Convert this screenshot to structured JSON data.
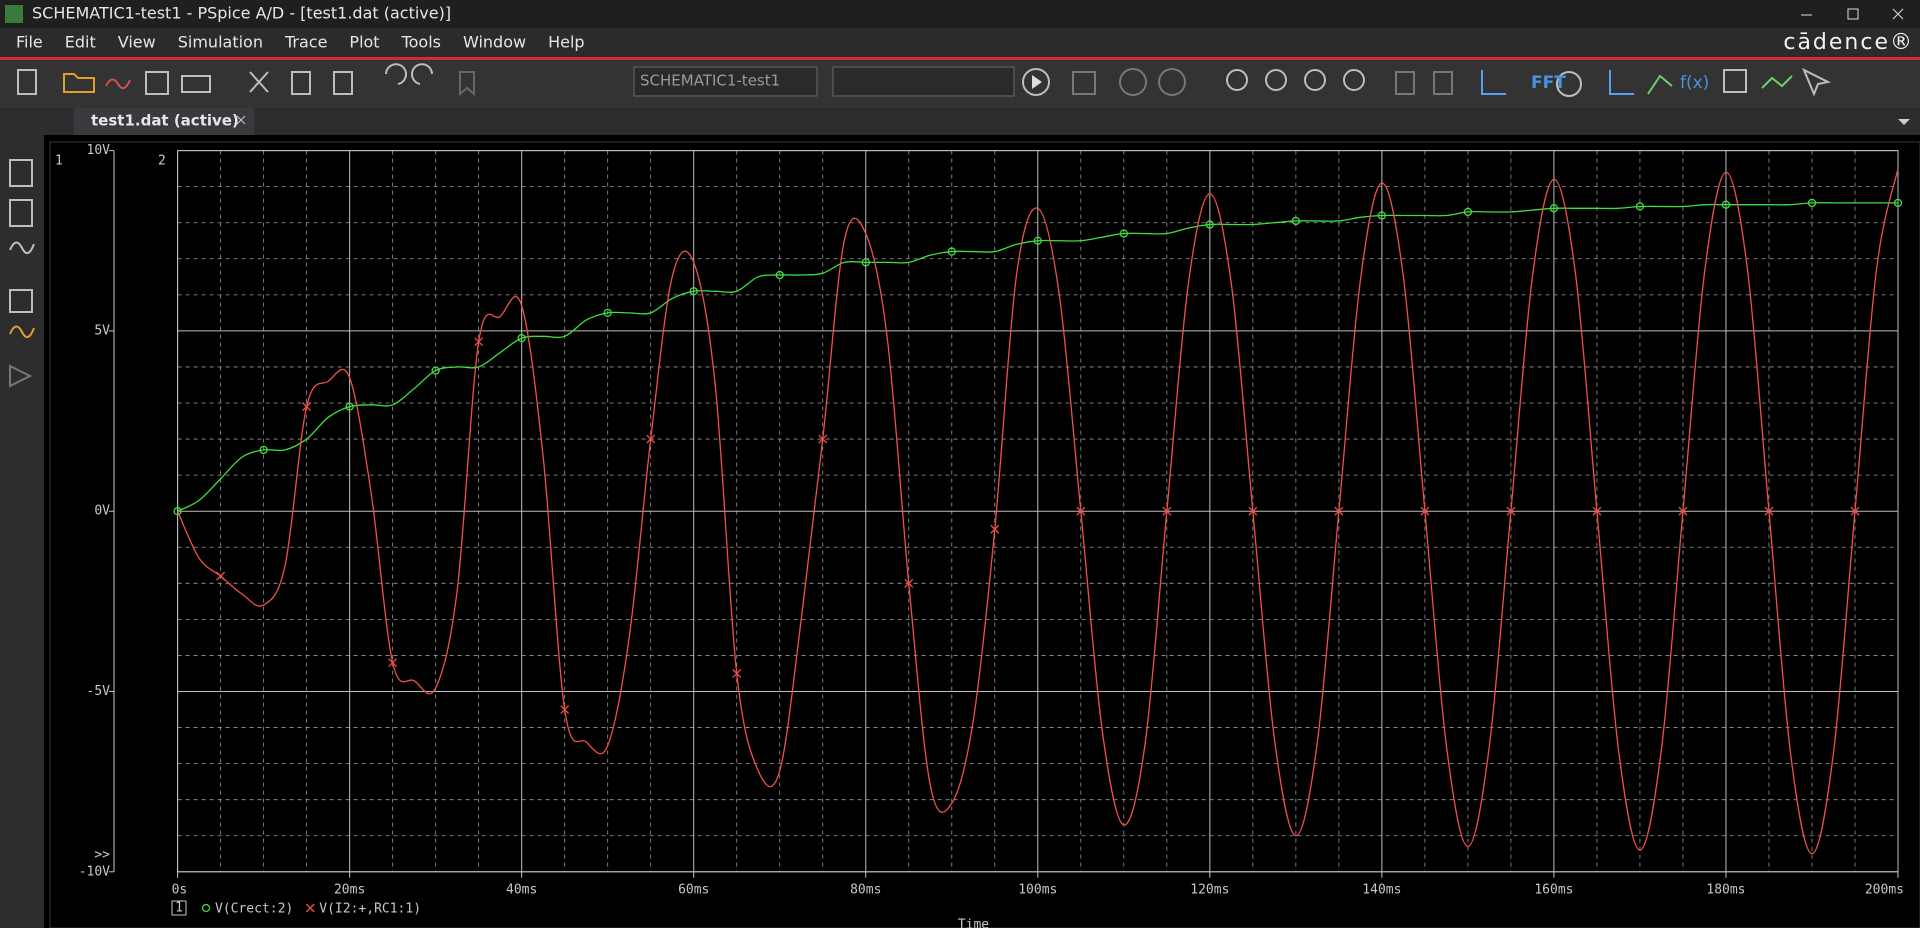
{
  "window": {
    "title": "SCHEMATIC1-test1 - PSpice A/D  - [test1.dat (active)]"
  },
  "menu": [
    "File",
    "Edit",
    "View",
    "Simulation",
    "Trace",
    "Plot",
    "Tools",
    "Window",
    "Help"
  ],
  "brand": "cādence®",
  "toolbar": {
    "profile": "SCHEMATIC1-test1",
    "fft": "FFT",
    "function": "f(x)"
  },
  "tab": "test1.dat (active)",
  "chart_data": {
    "type": "line",
    "axis_id": "1",
    "plot_id": "2",
    "overflow": ">>",
    "legend_id": "1",
    "x_label": "Time",
    "x": [
      0,
      2.5,
      5,
      7.5,
      10,
      12.5,
      15,
      17.5,
      20,
      22.5,
      25,
      27.5,
      30,
      32.5,
      35,
      37.5,
      40,
      42.5,
      45,
      47.5,
      50,
      52.5,
      55,
      57.5,
      60,
      62.5,
      65,
      67.5,
      70,
      72.5,
      75,
      77.5,
      80,
      82.5,
      85,
      87.5,
      90,
      92.5,
      95,
      97.5,
      100,
      102.5,
      105,
      107.5,
      110,
      112.5,
      115,
      117.5,
      120,
      122.5,
      125,
      127.5,
      130,
      132.5,
      135,
      137.5,
      140,
      142.5,
      145,
      147.5,
      150,
      152.5,
      155,
      157.5,
      160,
      162.5,
      165,
      167.5,
      170,
      172.5,
      175,
      177.5,
      180,
      182.5,
      185,
      187.5,
      190,
      192.5,
      195,
      197.5,
      200
    ],
    "series": [
      {
        "name": "V(Crect:2)",
        "color": "#3ee03e",
        "marker": "circle",
        "values": [
          0,
          0.3,
          0.9,
          1.5,
          1.7,
          1.7,
          2.0,
          2.6,
          2.9,
          2.95,
          2.95,
          3.4,
          3.9,
          4.0,
          4.0,
          4.4,
          4.8,
          4.85,
          4.85,
          5.3,
          5.5,
          5.5,
          5.5,
          5.9,
          6.1,
          6.1,
          6.1,
          6.5,
          6.55,
          6.55,
          6.6,
          6.9,
          6.9,
          6.9,
          6.9,
          7.1,
          7.2,
          7.2,
          7.2,
          7.4,
          7.5,
          7.5,
          7.5,
          7.6,
          7.7,
          7.7,
          7.7,
          7.85,
          7.95,
          7.95,
          7.95,
          8.0,
          8.05,
          8.05,
          8.05,
          8.15,
          8.2,
          8.2,
          8.2,
          8.2,
          8.3,
          8.3,
          8.3,
          8.35,
          8.4,
          8.4,
          8.4,
          8.4,
          8.45,
          8.45,
          8.45,
          8.5,
          8.5,
          8.5,
          8.5,
          8.5,
          8.55,
          8.55,
          8.55,
          8.55,
          8.55
        ]
      },
      {
        "name": "V(I2:+,RC1:1)",
        "color": "#f0504a",
        "marker": "x",
        "values": [
          0,
          -1.3,
          -1.8,
          -2.3,
          -2.6,
          -1.5,
          2.9,
          3.6,
          3.7,
          0.5,
          -4.2,
          -4.7,
          -4.9,
          -2.2,
          4.7,
          5.4,
          5.7,
          1.5,
          -5.5,
          -6.4,
          -6.5,
          -3.5,
          2.0,
          6.5,
          6.9,
          3.5,
          -4.5,
          -7.2,
          -7.2,
          -3.0,
          2.0,
          7.5,
          7.7,
          4.8,
          -2.0,
          -7.6,
          -8.1,
          -5.8,
          -0.5,
          6.5,
          8.4,
          6.0,
          0,
          -6.1,
          -8.7,
          -6.4,
          0,
          6.3,
          8.8,
          6.3,
          0,
          -6.3,
          -9.0,
          -6.4,
          0,
          6.4,
          9.1,
          6.5,
          0,
          -6.5,
          -9.3,
          -6.5,
          0,
          6.5,
          9.2,
          6.6,
          0,
          -6.6,
          -9.4,
          -6.6,
          0,
          6.6,
          9.4,
          6.7,
          0,
          -6.7,
          -9.5,
          -6.7,
          0,
          6.7,
          9.5
        ]
      }
    ],
    "xlim": [
      0,
      200
    ],
    "ylim": [
      -10,
      10
    ],
    "xticks": [
      {
        "value": 0,
        "label": "0s"
      },
      {
        "value": 20,
        "label": "20ms"
      },
      {
        "value": 40,
        "label": "40ms"
      },
      {
        "value": 60,
        "label": "60ms"
      },
      {
        "value": 80,
        "label": "80ms"
      },
      {
        "value": 100,
        "label": "100ms"
      },
      {
        "value": 120,
        "label": "120ms"
      },
      {
        "value": 140,
        "label": "140ms"
      },
      {
        "value": 160,
        "label": "160ms"
      },
      {
        "value": 180,
        "label": "180ms"
      },
      {
        "value": 200,
        "label": "200ms"
      }
    ],
    "yticks": [
      {
        "value": -10,
        "label": "-10V"
      },
      {
        "value": -5,
        "label": "-5V"
      },
      {
        "value": 0,
        "label": "0V"
      },
      {
        "value": 5,
        "label": "5V"
      },
      {
        "value": 10,
        "label": "10V"
      }
    ],
    "grid": true
  }
}
